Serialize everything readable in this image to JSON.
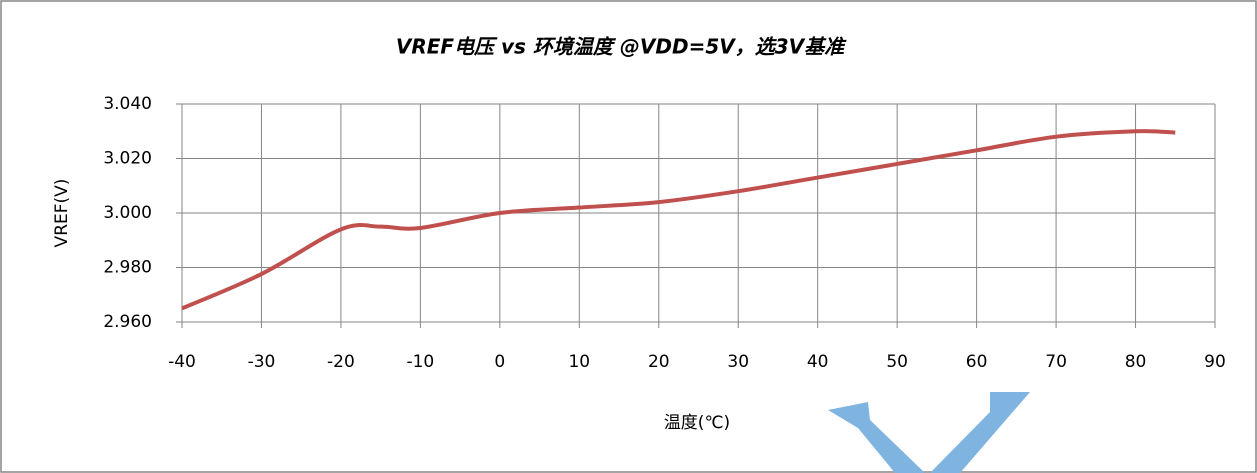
{
  "chart_data": {
    "type": "line",
    "title": "VREF电压 vs 环境温度 @VDD=5V，选3V基准",
    "x_label": "温度(℃)",
    "y_label": "VREF(V)",
    "x": [
      -40,
      -30,
      -20,
      -15,
      -10,
      0,
      10,
      20,
      30,
      40,
      50,
      60,
      70,
      80,
      85
    ],
    "series": [
      {
        "name": "VREF",
        "color": "#c0504d",
        "values": [
          2.965,
          2.9776,
          2.994,
          2.995,
          2.9945,
          3.0,
          3.002,
          3.004,
          3.008,
          3.013,
          3.018,
          3.023,
          3.028,
          3.03,
          3.0295
        ]
      }
    ],
    "xlim": [
      -40,
      90
    ],
    "xticks": [
      -40,
      -30,
      -20,
      -10,
      0,
      10,
      20,
      30,
      40,
      50,
      60,
      70,
      80,
      90
    ],
    "ylim": [
      2.96,
      3.04
    ],
    "yticks": [
      {
        "value": 2.96,
        "label": "2.960"
      },
      {
        "value": 2.98,
        "label": "2.980"
      },
      {
        "value": 3.0,
        "label": "3.000"
      },
      {
        "value": 3.02,
        "label": "3.020"
      },
      {
        "value": 3.04,
        "label": "3.040"
      }
    ],
    "grid": true
  }
}
